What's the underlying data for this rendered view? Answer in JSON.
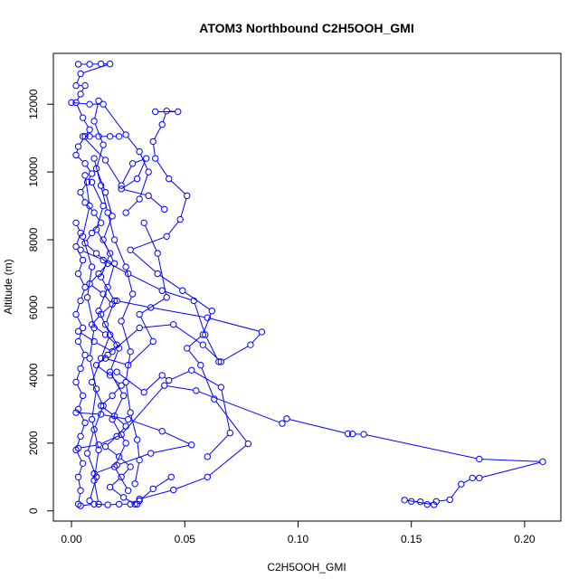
{
  "chart_data": {
    "type": "line",
    "title": "ATOM3 Northbound C2H5OOH_GMI",
    "xlabel": "C2H5OOH_GMI",
    "ylabel": "Altitude (m)",
    "xlim": [
      -0.008,
      0.216
    ],
    "ylim": [
      -300,
      13500
    ],
    "x_ticks": [
      0.0,
      0.05,
      0.1,
      0.15,
      0.2
    ],
    "x_tick_labels": [
      "0.00",
      "0.05",
      "0.10",
      "0.15",
      "0.20"
    ],
    "y_ticks": [
      0,
      2000,
      4000,
      6000,
      8000,
      10000,
      12000
    ],
    "y_tick_labels": [
      "0",
      "2000",
      "4000",
      "6000",
      "8000",
      "10000",
      "12000"
    ],
    "grid": false,
    "marker": "open-circle",
    "color": "#0000ff",
    "series": [
      {
        "values": [
          {
            "x": 0.003,
            "y": 13180
          },
          {
            "x": 0.008,
            "y": 13180
          },
          {
            "x": 0.013,
            "y": 13190
          },
          {
            "x": 0.017,
            "y": 13190
          },
          {
            "x": 0.004,
            "y": 12900
          },
          {
            "x": 0.002,
            "y": 12550
          },
          {
            "x": 0.006,
            "y": 12550
          },
          {
            "x": 0.004,
            "y": 12300
          },
          {
            "x": 0.002,
            "y": 12050
          },
          {
            "x": 0.005,
            "y": 11600
          },
          {
            "x": 0.008,
            "y": 11250
          },
          {
            "x": 0.006,
            "y": 11050
          },
          {
            "x": 0.003,
            "y": 10750
          },
          {
            "x": 0.002,
            "y": 10500
          },
          {
            "x": 0.006,
            "y": 10250
          },
          {
            "x": 0.009,
            "y": 9950
          },
          {
            "x": 0.007,
            "y": 9700
          },
          {
            "x": 0.004,
            "y": 9400
          },
          {
            "x": 0.006,
            "y": 9100
          },
          {
            "x": 0.01,
            "y": 8800
          },
          {
            "x": 0.013,
            "y": 8500
          },
          {
            "x": 0.009,
            "y": 8200
          },
          {
            "x": 0.006,
            "y": 7900
          },
          {
            "x": 0.011,
            "y": 7600
          },
          {
            "x": 0.016,
            "y": 7300
          },
          {
            "x": 0.012,
            "y": 7000
          },
          {
            "x": 0.008,
            "y": 6700
          },
          {
            "x": 0.014,
            "y": 6400
          },
          {
            "x": 0.018,
            "y": 6100
          },
          {
            "x": 0.013,
            "y": 5800
          },
          {
            "x": 0.009,
            "y": 5500
          },
          {
            "x": 0.015,
            "y": 5200
          },
          {
            "x": 0.02,
            "y": 4900
          },
          {
            "x": 0.016,
            "y": 4600
          },
          {
            "x": 0.011,
            "y": 4300
          },
          {
            "x": 0.017,
            "y": 4000
          },
          {
            "x": 0.022,
            "y": 3700
          },
          {
            "x": 0.018,
            "y": 3400
          },
          {
            "x": 0.013,
            "y": 3100
          },
          {
            "x": 0.019,
            "y": 2800
          },
          {
            "x": 0.024,
            "y": 2500
          },
          {
            "x": 0.02,
            "y": 2200
          },
          {
            "x": 0.015,
            "y": 1900
          },
          {
            "x": 0.021,
            "y": 1600
          },
          {
            "x": 0.026,
            "y": 1300
          },
          {
            "x": 0.022,
            "y": 1000
          },
          {
            "x": 0.017,
            "y": 700
          },
          {
            "x": 0.023,
            "y": 400
          },
          {
            "x": 0.028,
            "y": 200
          }
        ]
      },
      {
        "values": [
          {
            "x": 0.029,
            "y": 200
          },
          {
            "x": 0.03,
            "y": 350
          },
          {
            "x": 0.045,
            "y": 620
          },
          {
            "x": 0.06,
            "y": 1000
          },
          {
            "x": 0.078,
            "y": 1980
          },
          {
            "x": 0.063,
            "y": 3300
          },
          {
            "x": 0.057,
            "y": 4300
          },
          {
            "x": 0.051,
            "y": 4800
          },
          {
            "x": 0.058,
            "y": 5200
          },
          {
            "x": 0.062,
            "y": 5900
          },
          {
            "x": 0.049,
            "y": 6500
          },
          {
            "x": 0.038,
            "y": 7000
          },
          {
            "x": 0.026,
            "y": 7700
          },
          {
            "x": 0.042,
            "y": 8100
          },
          {
            "x": 0.048,
            "y": 8600
          },
          {
            "x": 0.051,
            "y": 9300
          },
          {
            "x": 0.043,
            "y": 9800
          },
          {
            "x": 0.037,
            "y": 10400
          },
          {
            "x": 0.036,
            "y": 10900
          },
          {
            "x": 0.04,
            "y": 11400
          },
          {
            "x": 0.042,
            "y": 11800
          },
          {
            "x": 0.047,
            "y": 11780
          },
          {
            "x": 0.037,
            "y": 11780
          }
        ]
      },
      {
        "values": [
          {
            "x": 0.021,
            "y": 11050
          },
          {
            "x": 0.017,
            "y": 11050
          },
          {
            "x": 0.012,
            "y": 11050
          },
          {
            "x": 0.008,
            "y": 11050
          },
          {
            "x": 0.005,
            "y": 11050
          },
          {
            "x": 0.015,
            "y": 10350
          },
          {
            "x": 0.022,
            "y": 9600
          },
          {
            "x": 0.027,
            "y": 10250
          },
          {
            "x": 0.033,
            "y": 10400
          },
          {
            "x": 0.029,
            "y": 9800
          },
          {
            "x": 0.022,
            "y": 9500
          },
          {
            "x": 0.034,
            "y": 9300
          },
          {
            "x": 0.041,
            "y": 8900
          }
        ]
      },
      {
        "values": [
          {
            "x": 0.003,
            "y": 1850
          },
          {
            "x": 0.012,
            "y": 1950
          },
          {
            "x": 0.022,
            "y": 2250
          },
          {
            "x": 0.041,
            "y": 3700
          },
          {
            "x": 0.055,
            "y": 3550
          },
          {
            "x": 0.093,
            "y": 2580
          },
          {
            "x": 0.095,
            "y": 2720
          },
          {
            "x": 0.122,
            "y": 2280
          },
          {
            "x": 0.124,
            "y": 2270
          },
          {
            "x": 0.129,
            "y": 2260
          },
          {
            "x": 0.18,
            "y": 1530
          },
          {
            "x": 0.208,
            "y": 1450
          },
          {
            "x": 0.18,
            "y": 970
          },
          {
            "x": 0.177,
            "y": 970
          },
          {
            "x": 0.172,
            "y": 790
          },
          {
            "x": 0.167,
            "y": 330
          },
          {
            "x": 0.161,
            "y": 280
          },
          {
            "x": 0.157,
            "y": 190
          },
          {
            "x": 0.154,
            "y": 270
          },
          {
            "x": 0.15,
            "y": 280
          },
          {
            "x": 0.147,
            "y": 320
          },
          {
            "x": 0.16,
            "y": 180
          }
        ]
      },
      {
        "values": [
          {
            "x": 0.003,
            "y": 5300
          },
          {
            "x": 0.01,
            "y": 5000
          },
          {
            "x": 0.018,
            "y": 4700
          },
          {
            "x": 0.03,
            "y": 5400
          },
          {
            "x": 0.045,
            "y": 5500
          },
          {
            "x": 0.058,
            "y": 4900
          },
          {
            "x": 0.066,
            "y": 4400
          },
          {
            "x": 0.079,
            "y": 4900
          },
          {
            "x": 0.084,
            "y": 5280
          },
          {
            "x": 0.06,
            "y": 5700
          },
          {
            "x": 0.035,
            "y": 6000
          },
          {
            "x": 0.02,
            "y": 6200
          }
        ]
      },
      {
        "values": [
          {
            "x": 0.002,
            "y": 2900
          },
          {
            "x": 0.013,
            "y": 2850
          },
          {
            "x": 0.025,
            "y": 2700
          },
          {
            "x": 0.04,
            "y": 2350
          },
          {
            "x": 0.053,
            "y": 1950
          },
          {
            "x": 0.035,
            "y": 1700
          },
          {
            "x": 0.02,
            "y": 1350
          },
          {
            "x": 0.01,
            "y": 1100
          }
        ]
      },
      {
        "values": [
          {
            "x": 0.02,
            "y": 4100
          },
          {
            "x": 0.032,
            "y": 3500
          },
          {
            "x": 0.04,
            "y": 4000
          },
          {
            "x": 0.043,
            "y": 3850
          },
          {
            "x": 0.053,
            "y": 4150
          },
          {
            "x": 0.066,
            "y": 3650
          },
          {
            "x": 0.07,
            "y": 2300
          },
          {
            "x": 0.06,
            "y": 1600
          }
        ]
      },
      {
        "values": [
          {
            "x": 0.004,
            "y": 7700
          },
          {
            "x": 0.014,
            "y": 7400
          },
          {
            "x": 0.025,
            "y": 7000
          },
          {
            "x": 0.04,
            "y": 6500
          },
          {
            "x": 0.054,
            "y": 6200
          },
          {
            "x": 0.059,
            "y": 5200
          },
          {
            "x": 0.065,
            "y": 4400
          }
        ]
      },
      {
        "values": [
          {
            "x": 0.015,
            "y": 4500
          },
          {
            "x": 0.025,
            "y": 4300
          },
          {
            "x": 0.036,
            "y": 5000
          },
          {
            "x": 0.03,
            "y": 5800
          },
          {
            "x": 0.042,
            "y": 6300
          },
          {
            "x": 0.038,
            "y": 7600
          },
          {
            "x": 0.032,
            "y": 8500
          }
        ]
      },
      {
        "values": [
          {
            "x": 0.0,
            "y": 12050
          },
          {
            "x": 0.008,
            "y": 12000
          },
          {
            "x": 0.014,
            "y": 12000
          },
          {
            "x": 0.024,
            "y": 11100
          },
          {
            "x": 0.03,
            "y": 10600
          },
          {
            "x": 0.034,
            "y": 10000
          },
          {
            "x": 0.03,
            "y": 9200
          },
          {
            "x": 0.024,
            "y": 8800
          }
        ]
      },
      {
        "values": [
          {
            "x": 0.028,
            "y": 800
          },
          {
            "x": 0.03,
            "y": 1500
          },
          {
            "x": 0.029,
            "y": 2100
          },
          {
            "x": 0.026,
            "y": 2900
          },
          {
            "x": 0.024,
            "y": 3800
          },
          {
            "x": 0.026,
            "y": 4700
          },
          {
            "x": 0.022,
            "y": 5600
          },
          {
            "x": 0.027,
            "y": 6400
          },
          {
            "x": 0.024,
            "y": 7200
          },
          {
            "x": 0.019,
            "y": 8000
          },
          {
            "x": 0.016,
            "y": 8800
          },
          {
            "x": 0.013,
            "y": 9600
          },
          {
            "x": 0.01,
            "y": 10400
          }
        ]
      },
      {
        "values": [
          {
            "x": 0.004,
            "y": 150
          },
          {
            "x": 0.01,
            "y": 200
          },
          {
            "x": 0.016,
            "y": 180
          },
          {
            "x": 0.021,
            "y": 200
          },
          {
            "x": 0.026,
            "y": 200
          },
          {
            "x": 0.03,
            "y": 300
          },
          {
            "x": 0.036,
            "y": 650
          },
          {
            "x": 0.044,
            "y": 1000
          }
        ]
      },
      {
        "values": [
          {
            "x": 0.002,
            "y": 8500
          },
          {
            "x": 0.004,
            "y": 8200
          },
          {
            "x": 0.002,
            "y": 7800
          },
          {
            "x": 0.005,
            "y": 7400
          },
          {
            "x": 0.003,
            "y": 7000
          },
          {
            "x": 0.006,
            "y": 6600
          },
          {
            "x": 0.004,
            "y": 6200
          },
          {
            "x": 0.002,
            "y": 5800
          },
          {
            "x": 0.005,
            "y": 5400
          },
          {
            "x": 0.003,
            "y": 5000
          },
          {
            "x": 0.006,
            "y": 4600
          },
          {
            "x": 0.004,
            "y": 4200
          },
          {
            "x": 0.002,
            "y": 3800
          },
          {
            "x": 0.005,
            "y": 3400
          },
          {
            "x": 0.003,
            "y": 3000
          },
          {
            "x": 0.006,
            "y": 2600
          },
          {
            "x": 0.004,
            "y": 2200
          },
          {
            "x": 0.002,
            "y": 1800
          },
          {
            "x": 0.005,
            "y": 1400
          },
          {
            "x": 0.003,
            "y": 1000
          },
          {
            "x": 0.004,
            "y": 600
          },
          {
            "x": 0.003,
            "y": 200
          }
        ]
      },
      {
        "values": [
          {
            "x": 0.012,
            "y": 12100
          },
          {
            "x": 0.01,
            "y": 11500
          },
          {
            "x": 0.014,
            "y": 10800
          },
          {
            "x": 0.011,
            "y": 10100
          },
          {
            "x": 0.015,
            "y": 9400
          },
          {
            "x": 0.018,
            "y": 8700
          },
          {
            "x": 0.014,
            "y": 8000
          },
          {
            "x": 0.019,
            "y": 7300
          },
          {
            "x": 0.016,
            "y": 6600
          },
          {
            "x": 0.012,
            "y": 5900
          },
          {
            "x": 0.017,
            "y": 5200
          },
          {
            "x": 0.013,
            "y": 4500
          },
          {
            "x": 0.009,
            "y": 3800
          },
          {
            "x": 0.014,
            "y": 3100
          },
          {
            "x": 0.01,
            "y": 2400
          },
          {
            "x": 0.007,
            "y": 1700
          },
          {
            "x": 0.011,
            "y": 1000
          },
          {
            "x": 0.008,
            "y": 300
          }
        ]
      },
      {
        "values": [
          {
            "x": 0.025,
            "y": 600
          },
          {
            "x": 0.019,
            "y": 1300
          },
          {
            "x": 0.024,
            "y": 2000
          },
          {
            "x": 0.018,
            "y": 2700
          },
          {
            "x": 0.023,
            "y": 3400
          },
          {
            "x": 0.017,
            "y": 4100
          },
          {
            "x": 0.021,
            "y": 4800
          },
          {
            "x": 0.015,
            "y": 5500
          },
          {
            "x": 0.019,
            "y": 6200
          },
          {
            "x": 0.013,
            "y": 6900
          },
          {
            "x": 0.017,
            "y": 7600
          },
          {
            "x": 0.011,
            "y": 8300
          },
          {
            "x": 0.014,
            "y": 9000
          },
          {
            "x": 0.009,
            "y": 9700
          }
        ]
      },
      {
        "values": [
          {
            "x": 0.006,
            "y": 9900
          },
          {
            "x": 0.008,
            "y": 9000
          },
          {
            "x": 0.005,
            "y": 8100
          },
          {
            "x": 0.009,
            "y": 7200
          },
          {
            "x": 0.007,
            "y": 6300
          },
          {
            "x": 0.01,
            "y": 5400
          },
          {
            "x": 0.008,
            "y": 4500
          },
          {
            "x": 0.011,
            "y": 3600
          },
          {
            "x": 0.009,
            "y": 2700
          },
          {
            "x": 0.012,
            "y": 1800
          },
          {
            "x": 0.01,
            "y": 900
          },
          {
            "x": 0.012,
            "y": 200
          }
        ]
      }
    ]
  }
}
